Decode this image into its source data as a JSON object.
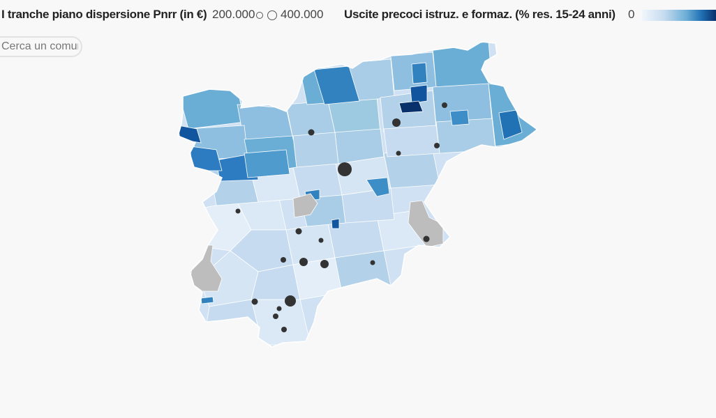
{
  "legend": {
    "funding_title": "I tranche piano dispersione Pnrr (in €)",
    "funding_min": "200.000",
    "funding_max": "400.000",
    "rate_title": "Uscite precoci istruz. e formaz. (% res. 15-24 anni)",
    "rate_min": "0"
  },
  "search": {
    "placeholder": "Cerca un comune"
  },
  "colors": {
    "scale": [
      "#e8f1fa",
      "#cfe1f2",
      "#a9cde6",
      "#6aaed6",
      "#3282c0",
      "#12559f",
      "#08306b"
    ],
    "no_data": "#bdbdbd",
    "marker": "#333333"
  },
  "chart_data": {
    "type": "choropleth",
    "region": "Trentino",
    "description_source": "map of municipalities colored by early school leaving rate with proportional circles for PNRR funding",
    "funding_range": [
      200000,
      400000
    ]
  }
}
